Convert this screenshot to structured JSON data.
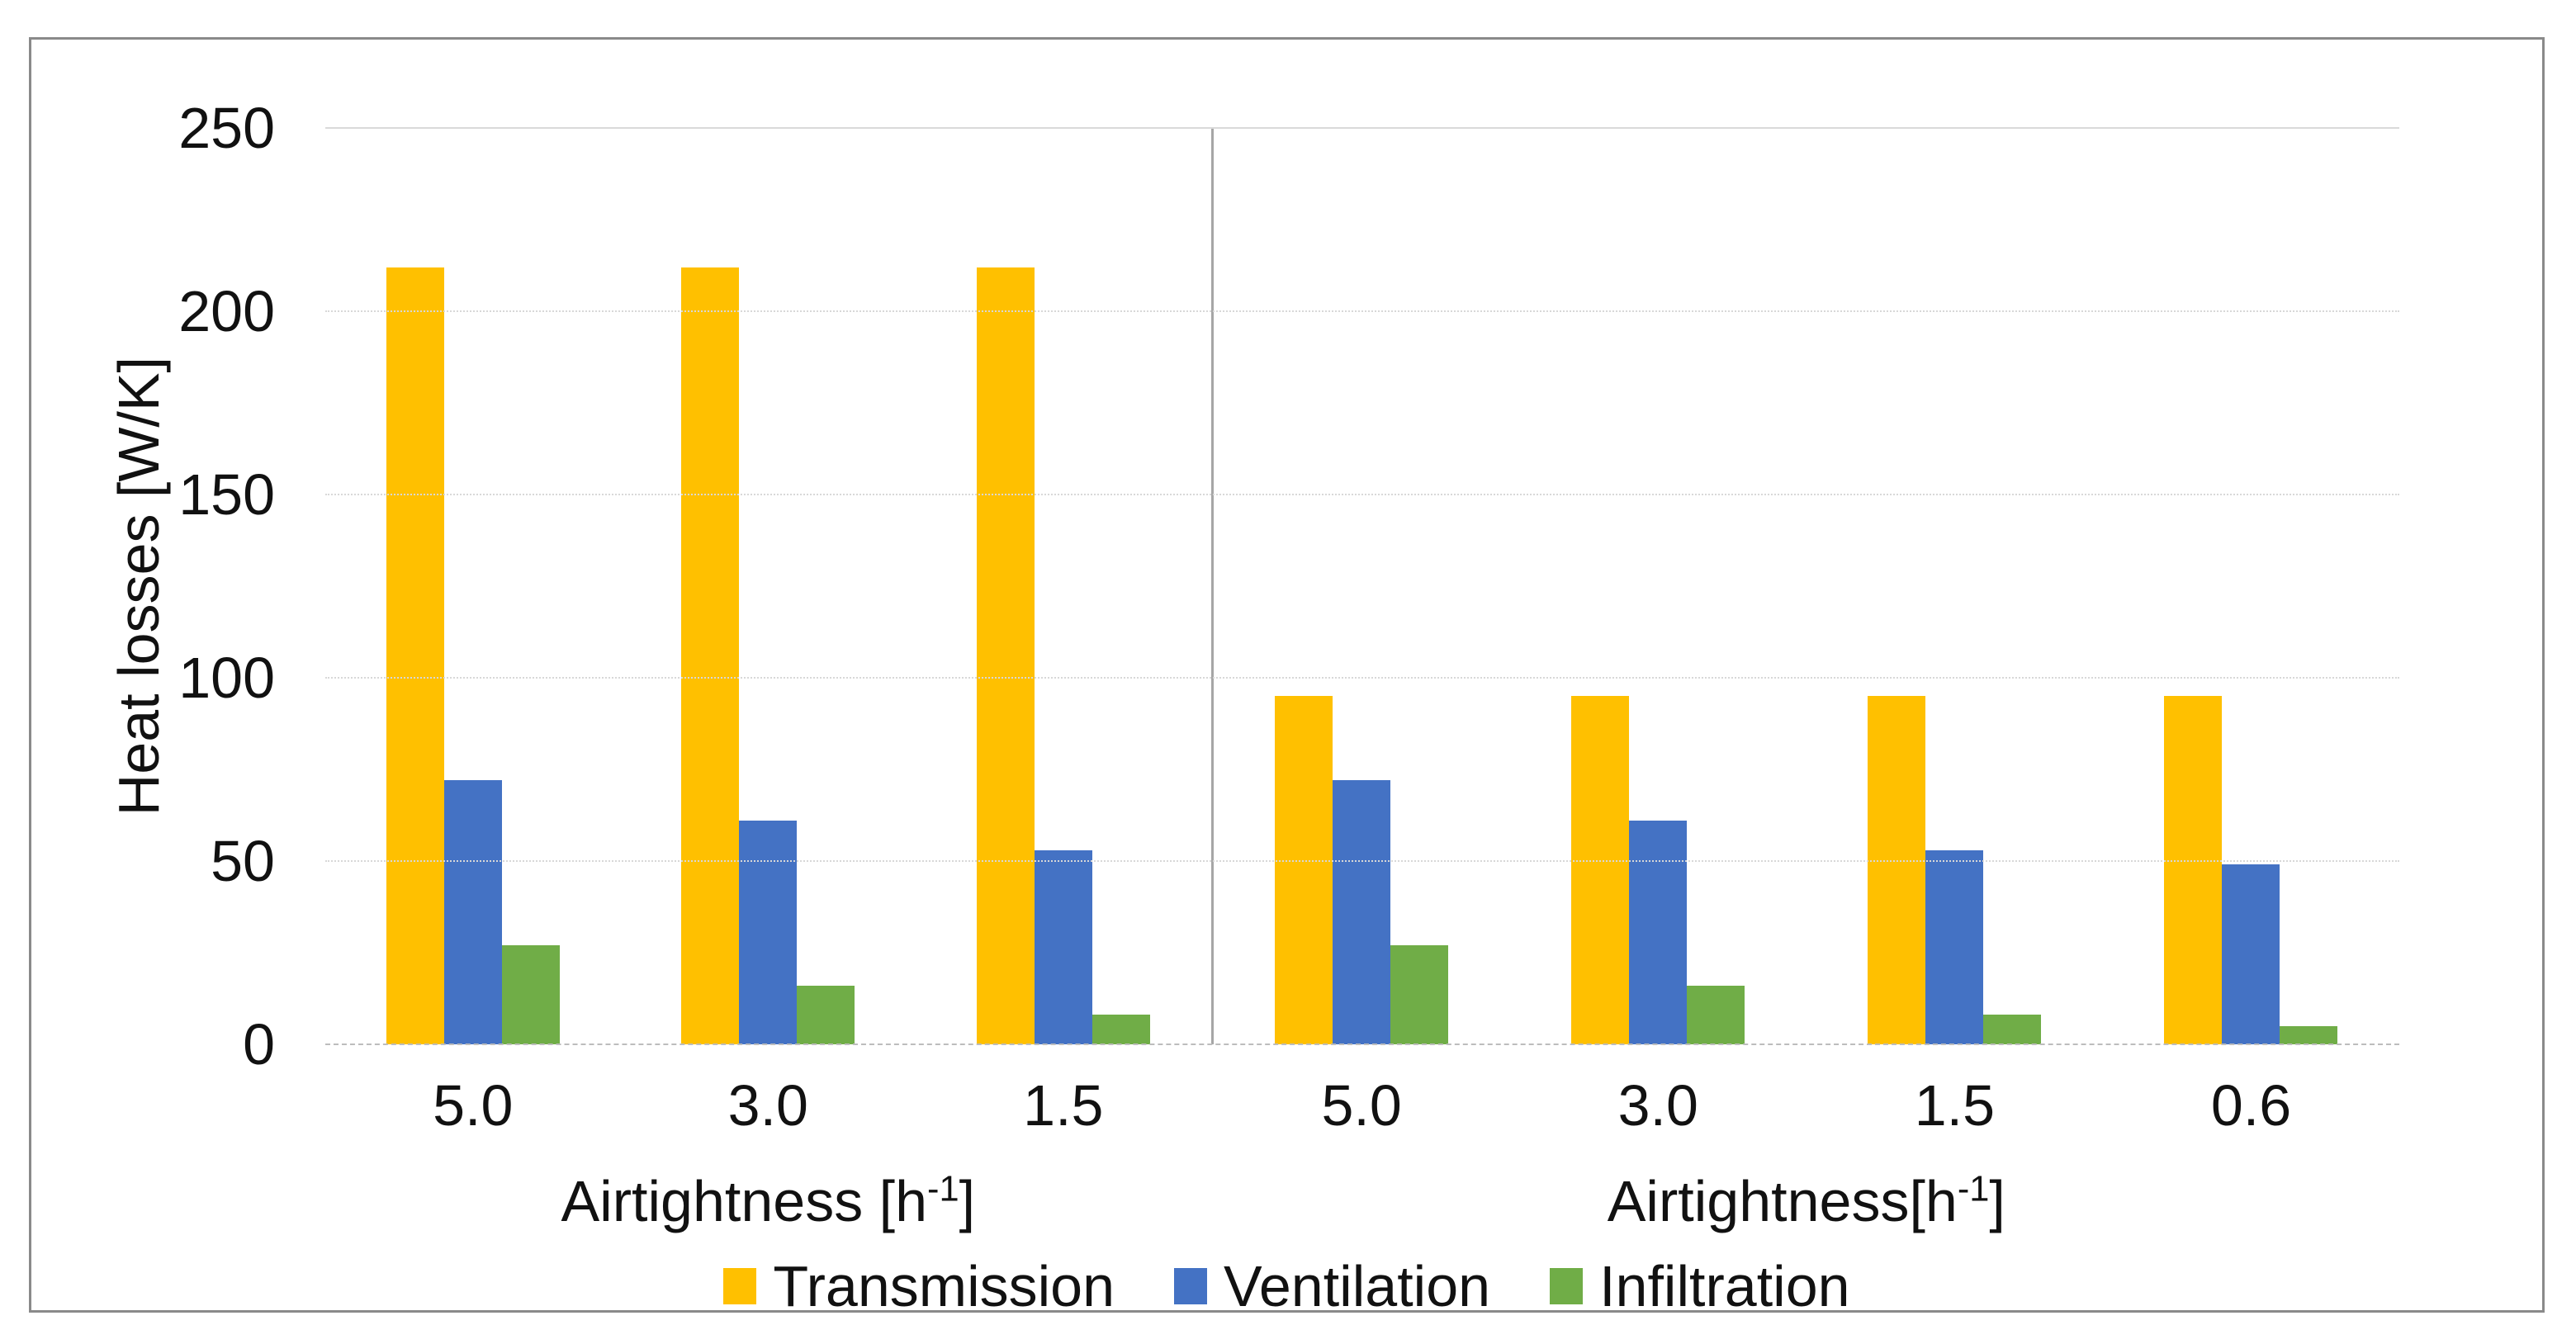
{
  "chart_data": {
    "type": "bar",
    "title": "",
    "ylabel": "Heat losses [W/K]",
    "ylim": [
      0,
      250
    ],
    "yticks": [
      250,
      200,
      150,
      100,
      50,
      0
    ],
    "grid": "horizontal-dotted",
    "legend": [
      "Transmission",
      "Ventilation",
      "Infiltration"
    ],
    "legend_position": "bottom-center",
    "series_colors": {
      "Transmission": "#FFC000",
      "Ventilation": "#4472C4",
      "Infiltration": "#70AD47"
    },
    "clusters": [
      {
        "xlabel": {
          "pre": "Airtightness [h",
          "sup": "-1",
          "post": "]"
        },
        "categories": [
          "5.0",
          "3.0",
          "1.5"
        ],
        "series": [
          {
            "name": "Transmission",
            "values": [
              212,
              212,
              212
            ]
          },
          {
            "name": "Ventilation",
            "values": [
              72,
              61,
              53
            ]
          },
          {
            "name": "Infiltration",
            "values": [
              27,
              16,
              8
            ]
          }
        ]
      },
      {
        "xlabel": {
          "pre": "Airtightness[h",
          "sup": "-1",
          "post": "]"
        },
        "categories": [
          "5.0",
          "3.0",
          "1.5",
          "0.6"
        ],
        "series": [
          {
            "name": "Transmission",
            "values": [
              95,
              95,
              95,
              95
            ]
          },
          {
            "name": "Ventilation",
            "values": [
              72,
              61,
              53,
              49
            ]
          },
          {
            "name": "Infiltration",
            "values": [
              27,
              16,
              8,
              5
            ]
          }
        ]
      }
    ]
  },
  "colors": {
    "frame_border": "#8a8a8a",
    "cluster_divider": "#a6a6a6",
    "gridline": "#d8d8d8",
    "text": "#111111",
    "background": "#ffffff"
  }
}
